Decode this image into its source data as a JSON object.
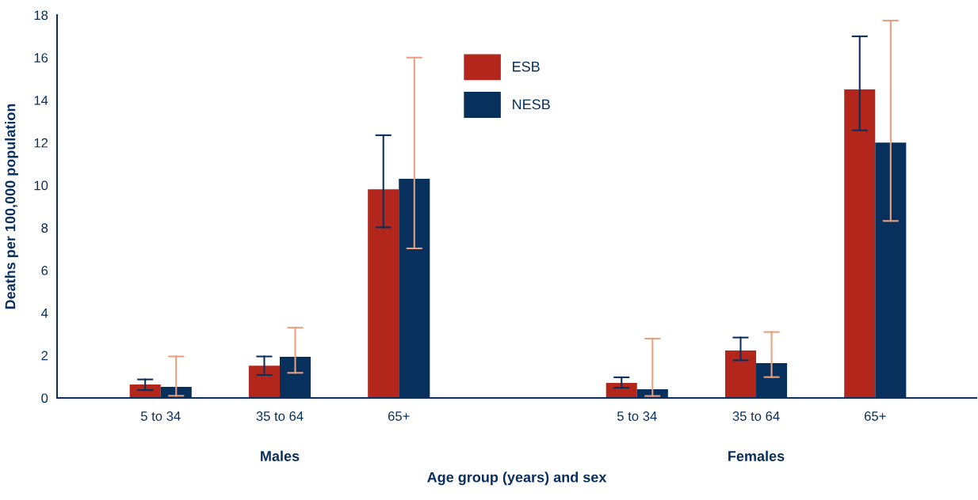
{
  "chart_data": {
    "type": "bar",
    "xlabel": "Age group (years) and sex",
    "ylabel": "Deaths per 100,000 population",
    "categories": [
      "5 to 34",
      "35 to 64",
      "65+",
      null,
      "5 to 34",
      "35 to 64",
      "65+"
    ],
    "series": [
      {
        "name": "ESB",
        "color": "#b2261b",
        "values": [
          0.63,
          1.52,
          9.81,
          null,
          0.71,
          2.23,
          14.5
        ],
        "errors": [
          [
            0.37,
            0.87
          ],
          [
            1.08,
            1.95
          ],
          [
            8.02,
            12.35
          ],
          null,
          [
            0.48,
            0.97
          ],
          [
            1.77,
            2.84
          ],
          [
            12.58,
            17.0
          ]
        ]
      },
      {
        "name": "NESB",
        "color": "#07315c",
        "values": [
          0.52,
          1.93,
          10.3,
          null,
          0.41,
          1.64,
          12.0
        ],
        "errors": [
          [
            0.1,
            1.95
          ],
          [
            1.18,
            3.3
          ],
          [
            7.03,
            16.0
          ],
          null,
          [
            0.09,
            2.79
          ],
          [
            0.98,
            3.1
          ],
          [
            8.32,
            17.74
          ]
        ]
      }
    ],
    "ylim": [
      0,
      18
    ],
    "yticks": [
      0,
      2,
      4,
      6,
      8,
      10,
      12,
      14,
      16,
      18
    ],
    "grid": false,
    "legend": "top",
    "annotations": [
      "Males",
      "Females"
    ]
  }
}
